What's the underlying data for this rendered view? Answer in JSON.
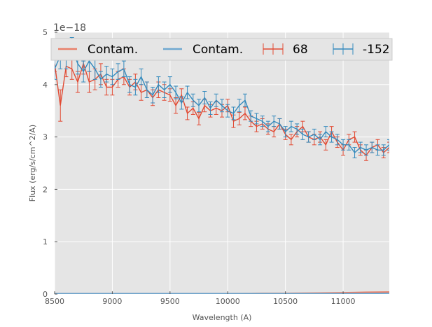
{
  "chart_data": {
    "type": "line",
    "title": "",
    "xlabel": "Wavelength (A)",
    "ylabel": "Flux (erg/s/cm^2/A)",
    "offset_text": "1e−18",
    "xlim": [
      8500,
      11400
    ],
    "ylim": [
      0,
      5
    ],
    "x_ticks": [
      8500,
      9000,
      9500,
      10000,
      10500,
      11000
    ],
    "y_ticks": [
      0,
      1,
      2,
      3,
      4,
      5
    ],
    "grid": true,
    "background": "#e5e5e5",
    "legend_position": "top",
    "legend": [
      {
        "label": "Contam.",
        "kind": "line",
        "color": "#e8806a"
      },
      {
        "label": "Contam.",
        "kind": "line",
        "color": "#6fa8d0"
      },
      {
        "label": "68",
        "kind": "errorbar",
        "color": "#e24a33"
      },
      {
        "label": "-152",
        "kind": "errorbar",
        "color": "#348abd"
      }
    ],
    "series": [
      {
        "name": "68",
        "kind": "errorbar",
        "color": "#e24a33",
        "x": [
          8500,
          8550,
          8600,
          8650,
          8700,
          8750,
          8800,
          8850,
          8900,
          8950,
          9000,
          9050,
          9100,
          9150,
          9200,
          9250,
          9300,
          9350,
          9400,
          9450,
          9500,
          9550,
          9600,
          9650,
          9700,
          9750,
          9800,
          9850,
          9900,
          9950,
          10000,
          10050,
          10100,
          10150,
          10200,
          10250,
          10300,
          10350,
          10400,
          10450,
          10500,
          10550,
          10600,
          10650,
          10700,
          10750,
          10800,
          10850,
          10900,
          10950,
          11000,
          11050,
          11100,
          11150,
          11200,
          11250,
          11300,
          11350,
          11400
        ],
        "y": [
          4.4,
          3.6,
          4.35,
          4.3,
          4.05,
          4.4,
          4.05,
          4.1,
          4.2,
          3.95,
          3.95,
          4.1,
          4.15,
          3.95,
          4.05,
          3.85,
          3.9,
          3.75,
          3.9,
          3.85,
          3.8,
          3.6,
          3.8,
          3.45,
          3.55,
          3.35,
          3.6,
          3.5,
          3.55,
          3.5,
          3.6,
          3.3,
          3.35,
          3.45,
          3.3,
          3.2,
          3.25,
          3.15,
          3.1,
          3.25,
          3.05,
          2.95,
          3.1,
          3.2,
          3.0,
          2.95,
          3.0,
          2.85,
          3.1,
          2.9,
          2.75,
          2.95,
          3.0,
          2.75,
          2.65,
          2.8,
          2.85,
          2.7,
          2.8
        ],
        "err": [
          0.15,
          0.3,
          0.2,
          0.2,
          0.2,
          0.2,
          0.2,
          0.2,
          0.2,
          0.15,
          0.15,
          0.15,
          0.15,
          0.15,
          0.15,
          0.15,
          0.15,
          0.15,
          0.15,
          0.15,
          0.12,
          0.15,
          0.12,
          0.12,
          0.12,
          0.12,
          0.12,
          0.12,
          0.12,
          0.12,
          0.12,
          0.12,
          0.12,
          0.12,
          0.1,
          0.1,
          0.1,
          0.1,
          0.1,
          0.1,
          0.1,
          0.1,
          0.1,
          0.1,
          0.1,
          0.1,
          0.1,
          0.1,
          0.1,
          0.1,
          0.1,
          0.1,
          0.1,
          0.1,
          0.1,
          0.1,
          0.1,
          0.1,
          0.1
        ]
      },
      {
        "name": "-152",
        "kind": "errorbar",
        "color": "#348abd",
        "x": [
          8500,
          8550,
          8600,
          8650,
          8700,
          8750,
          8800,
          8850,
          8900,
          8950,
          9000,
          9050,
          9100,
          9150,
          9200,
          9250,
          9300,
          9350,
          9400,
          9450,
          9500,
          9550,
          9600,
          9650,
          9700,
          9750,
          9800,
          9850,
          9900,
          9950,
          10000,
          10050,
          10100,
          10150,
          10200,
          10250,
          10300,
          10350,
          10400,
          10450,
          10500,
          10550,
          10600,
          10650,
          10700,
          10750,
          10800,
          10850,
          10900,
          10950,
          11000,
          11050,
          11100,
          11150,
          11200,
          11250,
          11300,
          11350,
          11400
        ],
        "y": [
          4.3,
          4.55,
          4.5,
          4.7,
          4.4,
          4.25,
          4.45,
          4.3,
          4.1,
          4.2,
          4.15,
          4.25,
          4.3,
          4.0,
          3.95,
          4.15,
          3.9,
          3.8,
          4.0,
          3.9,
          4.0,
          3.85,
          3.65,
          3.85,
          3.7,
          3.6,
          3.75,
          3.55,
          3.7,
          3.6,
          3.5,
          3.45,
          3.6,
          3.7,
          3.4,
          3.35,
          3.3,
          3.2,
          3.3,
          3.25,
          3.1,
          3.2,
          3.15,
          3.05,
          3.0,
          3.05,
          2.95,
          3.1,
          3.0,
          2.95,
          2.85,
          2.85,
          2.7,
          2.8,
          2.75,
          2.8,
          2.75,
          2.75,
          2.85
        ],
        "err": [
          0.2,
          0.25,
          0.2,
          0.2,
          0.2,
          0.2,
          0.2,
          0.2,
          0.15,
          0.15,
          0.15,
          0.15,
          0.15,
          0.15,
          0.15,
          0.15,
          0.15,
          0.15,
          0.15,
          0.15,
          0.15,
          0.12,
          0.12,
          0.12,
          0.12,
          0.12,
          0.12,
          0.12,
          0.12,
          0.12,
          0.12,
          0.12,
          0.12,
          0.12,
          0.1,
          0.1,
          0.1,
          0.1,
          0.1,
          0.1,
          0.1,
          0.1,
          0.1,
          0.1,
          0.1,
          0.1,
          0.1,
          0.1,
          0.1,
          0.1,
          0.1,
          0.1,
          0.1,
          0.1,
          0.1,
          0.1,
          0.1,
          0.1,
          0.1
        ]
      },
      {
        "name": "Contam.",
        "kind": "line",
        "color": "#e8806a",
        "x": [
          8500,
          9000,
          9500,
          10000,
          10300,
          10500,
          10800,
          11000,
          11200,
          11400
        ],
        "y": [
          0.01,
          0.01,
          0.01,
          0.01,
          0.015,
          0.015,
          0.02,
          0.025,
          0.035,
          0.04
        ]
      },
      {
        "name": "Contam.",
        "kind": "line",
        "color": "#6fa8d0",
        "x": [
          8500,
          9000,
          9500,
          10000,
          10500,
          11000,
          11400
        ],
        "y": [
          0.01,
          0.01,
          0.01,
          0.01,
          0.01,
          0.01,
          0.015
        ]
      }
    ]
  }
}
